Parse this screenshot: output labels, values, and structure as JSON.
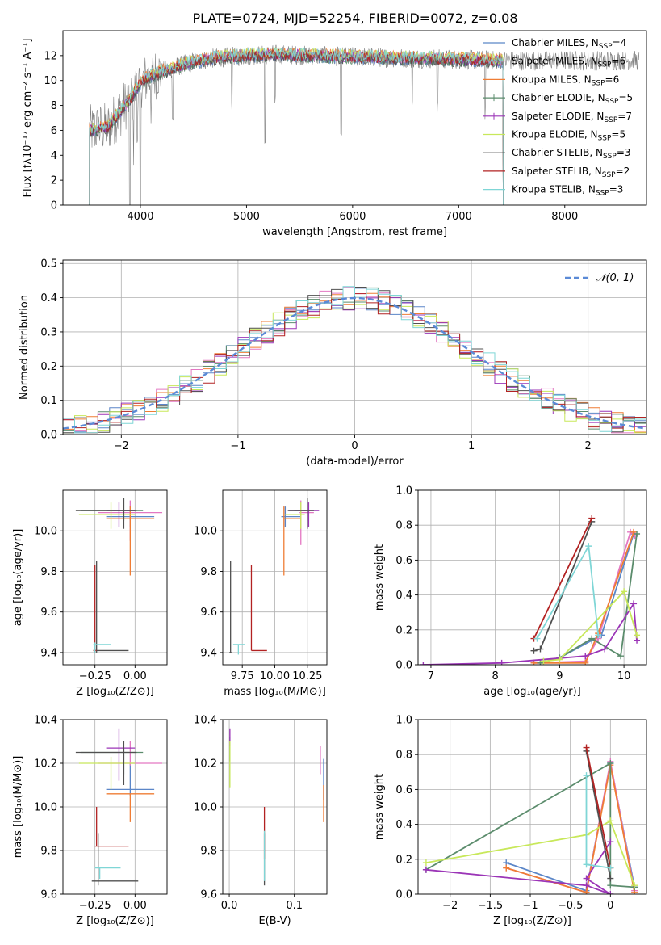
{
  "colors": {
    "chabrier_miles": "#5b86c8",
    "salpeter_miles": "#e377c2",
    "kroupa_miles": "#ef7d35",
    "chabrier_elodie": "#5b8c6c",
    "salpeter_elodie": "#9b35b7",
    "kroupa_elodie": "#c8e85a",
    "chabrier_stelib": "#505050",
    "salpeter_stelib": "#b22222",
    "kroupa_stelib": "#7fd6d6",
    "gaussian": "#5b8ad6"
  },
  "figure_title": "PLATE=0724, MJD=52254, FIBERID=0072, z=0.08",
  "legend_entries": [
    {
      "label": "Chabrier MILES, N",
      "sub": "SSP",
      "tail": "=4",
      "color": "chabrier_miles",
      "marker": false
    },
    {
      "label": "Salpeter MILES, N",
      "sub": "SSP",
      "tail": "=6",
      "color": "salpeter_miles",
      "marker": false
    },
    {
      "label": "Kroupa MILES, N",
      "sub": "SSP",
      "tail": "=6",
      "color": "kroupa_miles",
      "marker": false
    },
    {
      "label": "Chabrier ELODIE, N",
      "sub": "SSP",
      "tail": "=5",
      "color": "chabrier_elodie",
      "marker": true
    },
    {
      "label": "Salpeter ELODIE, N",
      "sub": "SSP",
      "tail": "=7",
      "color": "salpeter_elodie",
      "marker": true
    },
    {
      "label": "Kroupa ELODIE, N",
      "sub": "SSP",
      "tail": "=5",
      "color": "kroupa_elodie",
      "marker": false
    },
    {
      "label": "Chabrier STELIB, N",
      "sub": "SSP",
      "tail": "=3",
      "color": "chabrier_stelib",
      "marker": false
    },
    {
      "label": "Salpeter STELIB, N",
      "sub": "SSP",
      "tail": "=2",
      "color": "salpeter_stelib",
      "marker": false
    },
    {
      "label": "Kroupa STELIB, N",
      "sub": "SSP",
      "tail": "=3",
      "color": "kroupa_stelib",
      "marker": false
    }
  ],
  "chart_data": [
    {
      "id": "spectrum",
      "type": "line",
      "xlabel": "wavelength [Angstrom, rest frame]",
      "ylabel": "Flux [fλ10⁻¹⁷ erg cm⁻² s⁻¹ A⁻¹]",
      "xlim": [
        3270,
        8770
      ],
      "ylim": [
        0,
        14
      ],
      "xticks": [
        4000,
        5000,
        6000,
        7000,
        8000
      ],
      "yticks": [
        0,
        2,
        4,
        6,
        8,
        10,
        12
      ],
      "continuum": {
        "x": [
          3550,
          3700,
          3900,
          4000,
          4100,
          4300,
          4500,
          4700,
          5000,
          5300,
          5600,
          6000,
          6500,
          7000,
          7400
        ],
        "y": [
          6.0,
          6.3,
          8.5,
          9.8,
          10.4,
          11.0,
          11.5,
          11.8,
          12.0,
          12.1,
          12.0,
          11.9,
          11.8,
          11.7,
          11.6
        ]
      },
      "absorption_lines": [
        3934,
        3969,
        4102,
        4304,
        4861,
        5175,
        5270,
        5892,
        6563,
        6800,
        7250
      ]
    },
    {
      "id": "residuals",
      "type": "line",
      "xlabel": "(data-model)/error",
      "ylabel": "Normed distribution",
      "xlim": [
        -2.5,
        2.5
      ],
      "ylim": [
        0,
        0.51
      ],
      "xticks": [
        -2,
        -1,
        0,
        1,
        2
      ],
      "yticks": [
        0.0,
        0.1,
        0.2,
        0.3,
        0.4,
        0.5
      ],
      "legend_label": "𝒩(0, 1)",
      "gaussian": {
        "mu": 0,
        "sigma": 1
      }
    },
    {
      "id": "age_vs_Z",
      "type": "scatter",
      "xlabel": "Z [log₁₀(Z/Z⊙)]",
      "ylabel": "age  [log₁₀(age/yr)]",
      "xlim": [
        -0.45,
        0.2
      ],
      "ylim": [
        9.34,
        10.2
      ],
      "xticks": [
        -0.25,
        0.0
      ],
      "xticklabels": [
        "−0.25",
        "0.00"
      ],
      "yticks": [
        9.4,
        9.6,
        9.8,
        10.0
      ],
      "points": [
        {
          "series": "chabrier_miles",
          "x": -0.03,
          "y": 10.07,
          "xerr": [
            0.15,
            0.15
          ],
          "yerr": [
            0.05,
            0.05
          ]
        },
        {
          "series": "salpeter_miles",
          "x": -0.03,
          "y": 10.09,
          "xerr": [
            0.2,
            0.2
          ],
          "yerr": [
            0.14,
            0.06
          ]
        },
        {
          "series": "kroupa_miles",
          "x": -0.03,
          "y": 10.06,
          "xerr": [
            0.15,
            0.15
          ],
          "yerr": [
            0.28,
            0.06
          ]
        },
        {
          "series": "chabrier_elodie",
          "x": -0.07,
          "y": 10.1,
          "xerr": [
            0.27,
            0.12
          ],
          "yerr": [
            0.05,
            0.06
          ]
        },
        {
          "series": "salpeter_elodie",
          "x": -0.1,
          "y": 10.1,
          "xerr": [
            0.08,
            0.1
          ],
          "yerr": [
            0.08,
            0.04
          ]
        },
        {
          "series": "kroupa_elodie",
          "x": -0.15,
          "y": 10.08,
          "xerr": [
            0.2,
            0.15
          ],
          "yerr": [
            0.07,
            0.06
          ]
        },
        {
          "series": "chabrier_stelib",
          "x": -0.07,
          "y": 10.1,
          "xerr": [
            0.3,
            0.08
          ],
          "yerr": [
            0.09,
            0.06
          ]
        },
        {
          "series": "chabrier_stelib",
          "x": -0.24,
          "y": 9.41,
          "xerr": [
            0.02,
            0.2
          ],
          "yerr": [
            0.01,
            0.44
          ]
        },
        {
          "series": "salpeter_stelib",
          "x": -0.25,
          "y": 9.41,
          "xerr": [
            0.01,
            0.01
          ],
          "yerr": [
            0.01,
            0.42
          ]
        },
        {
          "series": "kroupa_stelib",
          "x": -0.25,
          "y": 9.44,
          "xerr": [
            0.01,
            0.1
          ],
          "yerr": [
            0.04,
            0.01
          ]
        }
      ]
    },
    {
      "id": "age_vs_mass",
      "type": "scatter",
      "xlabel": "mass [log₁₀(M/M⊙)]",
      "xlim": [
        9.6,
        10.4
      ],
      "ylim": [
        9.34,
        10.2
      ],
      "xticks": [
        9.75,
        10.0,
        10.25
      ],
      "xticklabels": [
        "9.75",
        "10.00",
        "10.25"
      ],
      "yticks": [
        9.4,
        9.6,
        9.8,
        10.0
      ],
      "points": [
        {
          "series": "chabrier_miles",
          "x": 10.08,
          "y": 10.07,
          "xerr": [
            0.03,
            0.12
          ],
          "yerr": [
            0.05,
            0.05
          ]
        },
        {
          "series": "salpeter_miles",
          "x": 10.2,
          "y": 10.09,
          "xerr": [
            0.01,
            0.1
          ],
          "yerr": [
            0.16,
            0.06
          ]
        },
        {
          "series": "kroupa_miles",
          "x": 10.07,
          "y": 10.06,
          "xerr": [
            0.0,
            0.13
          ],
          "yerr": [
            0.28,
            0.06
          ]
        },
        {
          "series": "chabrier_elodie",
          "x": 10.25,
          "y": 10.1,
          "xerr": [
            0.1,
            0.02
          ],
          "yerr": [
            0.05,
            0.05
          ]
        },
        {
          "series": "salpeter_elodie",
          "x": 10.26,
          "y": 10.1,
          "xerr": [
            0.15,
            0.08
          ],
          "yerr": [
            0.08,
            0.04
          ]
        },
        {
          "series": "kroupa_elodie",
          "x": 10.2,
          "y": 10.08,
          "xerr": [
            0.12,
            0.03
          ],
          "yerr": [
            0.07,
            0.06
          ]
        },
        {
          "series": "chabrier_stelib",
          "x": 10.25,
          "y": 10.1,
          "xerr": [
            0.15,
            0.05
          ],
          "yerr": [
            0.09,
            0.06
          ]
        },
        {
          "series": "chabrier_stelib",
          "x": 9.66,
          "y": 9.4,
          "xerr": [
            0.01,
            0.01
          ],
          "yerr": [
            0.0,
            0.45
          ]
        },
        {
          "series": "salpeter_stelib",
          "x": 9.82,
          "y": 9.41,
          "xerr": [
            0.0,
            0.12
          ],
          "yerr": [
            0.0,
            0.42
          ]
        },
        {
          "series": "kroupa_stelib",
          "x": 9.72,
          "y": 9.44,
          "xerr": [
            0.04,
            0.05
          ],
          "yerr": [
            0.05,
            0.0
          ]
        }
      ]
    },
    {
      "id": "weight_vs_age",
      "type": "line",
      "xlabel": "age  [log₁₀(age/yr)]",
      "ylabel": "mass weight",
      "xlim": [
        6.8,
        10.35
      ],
      "ylim": [
        0,
        1.0
      ],
      "xticks": [
        7,
        8,
        9,
        10
      ],
      "yticks": [
        0.0,
        0.2,
        0.4,
        0.6,
        0.8,
        1.0
      ],
      "series": [
        {
          "name": "chabrier_miles",
          "x": [
            8.7,
            9.0,
            9.5,
            9.65,
            10.15
          ],
          "y": [
            0.01,
            0.04,
            0.14,
            0.17,
            0.75
          ]
        },
        {
          "name": "salpeter_miles",
          "x": [
            8.6,
            9.4,
            9.6,
            10.1,
            10.17
          ],
          "y": [
            0.01,
            0.02,
            0.15,
            0.76,
            0.74
          ]
        },
        {
          "name": "kroupa_miles",
          "x": [
            8.6,
            9.4,
            9.6,
            10.15
          ],
          "y": [
            0.01,
            0.01,
            0.18,
            0.76
          ]
        },
        {
          "name": "chabrier_elodie",
          "x": [
            8.7,
            9.0,
            9.5,
            9.95,
            10.2
          ],
          "y": [
            0.01,
            0.04,
            0.15,
            0.05,
            0.75
          ]
        },
        {
          "name": "salpeter_elodie",
          "x": [
            6.88,
            8.1,
            9.4,
            9.7,
            10.15,
            10.2
          ],
          "y": [
            0.0,
            0.01,
            0.05,
            0.09,
            0.35,
            0.14
          ]
        },
        {
          "name": "kroupa_elodie",
          "x": [
            8.75,
            9.0,
            10.0,
            10.2
          ],
          "y": [
            0.02,
            0.03,
            0.42,
            0.17
          ]
        },
        {
          "name": "chabrier_stelib",
          "x": [
            8.6,
            8.7,
            9.5
          ],
          "y": [
            0.08,
            0.09,
            0.82
          ]
        },
        {
          "name": "salpeter_stelib",
          "x": [
            8.6,
            9.5
          ],
          "y": [
            0.15,
            0.84
          ]
        },
        {
          "name": "kroupa_stelib",
          "x": [
            8.65,
            9.45,
            9.6
          ],
          "y": [
            0.15,
            0.68,
            0.17
          ]
        }
      ]
    },
    {
      "id": "mass_vs_Z",
      "type": "scatter",
      "xlabel": "Z [log₁₀(Z/Z⊙)]",
      "ylabel": "mass [log₁₀(M/M⊙)]",
      "xlim": [
        -0.45,
        0.2
      ],
      "ylim": [
        9.6,
        10.4
      ],
      "xticks": [
        -0.25,
        0.0
      ],
      "xticklabels": [
        "−0.25",
        "0.00"
      ],
      "yticks": [
        9.6,
        9.8,
        10.0,
        10.2,
        10.4
      ],
      "points": [
        {
          "series": "chabrier_miles",
          "x": -0.03,
          "y": 10.08,
          "xerr": [
            0.15,
            0.15
          ],
          "yerr": [
            0.03,
            0.12
          ]
        },
        {
          "series": "salpeter_miles",
          "x": -0.03,
          "y": 10.2,
          "xerr": [
            0.2,
            0.2
          ],
          "yerr": [
            0.01,
            0.1
          ]
        },
        {
          "series": "kroupa_miles",
          "x": -0.03,
          "y": 10.06,
          "xerr": [
            0.15,
            0.15
          ],
          "yerr": [
            0.13,
            0.0
          ]
        },
        {
          "series": "chabrier_elodie",
          "x": -0.07,
          "y": 10.25,
          "xerr": [
            0.27,
            0.12
          ],
          "yerr": [
            0.1,
            0.02
          ]
        },
        {
          "series": "salpeter_elodie",
          "x": -0.1,
          "y": 10.27,
          "xerr": [
            0.08,
            0.1
          ],
          "yerr": [
            0.15,
            0.09
          ]
        },
        {
          "series": "kroupa_elodie",
          "x": -0.15,
          "y": 10.2,
          "xerr": [
            0.2,
            0.15
          ],
          "yerr": [
            0.12,
            0.03
          ]
        },
        {
          "series": "chabrier_stelib",
          "x": -0.07,
          "y": 10.25,
          "xerr": [
            0.3,
            0.08
          ],
          "yerr": [
            0.15,
            0.05
          ]
        },
        {
          "series": "chabrier_stelib",
          "x": -0.23,
          "y": 9.66,
          "xerr": [
            0.04,
            0.25
          ],
          "yerr": [
            0.02,
            0.22
          ]
        },
        {
          "series": "salpeter_stelib",
          "x": -0.24,
          "y": 9.82,
          "xerr": [
            0.01,
            0.2
          ],
          "yerr": [
            0.0,
            0.18
          ]
        },
        {
          "series": "kroupa_stelib",
          "x": -0.22,
          "y": 9.72,
          "xerr": [
            0.03,
            0.13
          ],
          "yerr": [
            0.05,
            0.0
          ]
        }
      ]
    },
    {
      "id": "mass_vs_EBV",
      "type": "scatter",
      "xlabel": "E(B-V)",
      "xlim": [
        -0.01,
        0.15
      ],
      "ylim": [
        9.6,
        10.4
      ],
      "xticks": [
        0.0,
        0.1
      ],
      "xticklabels": [
        "0.0",
        "0.1"
      ],
      "yticks": [
        9.6,
        9.8,
        10.0,
        10.2,
        10.4
      ],
      "points": [
        {
          "series": "chabrier_miles",
          "x": 0.145,
          "y": 10.08,
          "yerr": [
            0.05,
            0.14
          ]
        },
        {
          "series": "salpeter_miles",
          "x": 0.14,
          "y": 10.2,
          "yerr": [
            0.05,
            0.08
          ]
        },
        {
          "series": "kroupa_miles",
          "x": 0.145,
          "y": 10.06,
          "yerr": [
            0.13,
            0.04
          ]
        },
        {
          "series": "chabrier_elodie",
          "x": 0.001,
          "y": 10.25,
          "yerr": [
            0.04,
            0.07
          ]
        },
        {
          "series": "salpeter_elodie",
          "x": 0.001,
          "y": 10.33,
          "yerr": [
            0.05,
            0.03
          ]
        },
        {
          "series": "kroupa_elodie",
          "x": 0.001,
          "y": 10.2,
          "yerr": [
            0.11,
            0.1
          ]
        },
        {
          "series": "chabrier_stelib",
          "x": 0.054,
          "y": 9.8,
          "yerr": [
            0.16,
            0.08
          ]
        },
        {
          "series": "salpeter_stelib",
          "x": 0.054,
          "y": 9.82,
          "yerr": [
            0.06,
            0.18
          ]
        },
        {
          "series": "kroupa_stelib",
          "x": 0.054,
          "y": 9.72,
          "yerr": [
            0.06,
            0.17
          ]
        }
      ]
    },
    {
      "id": "weight_vs_Z",
      "type": "line",
      "xlabel": "Z [log₁₀(Z/Z⊙)]",
      "ylabel": "mass weight",
      "xlim": [
        -2.4,
        0.45
      ],
      "ylim": [
        0,
        1.0
      ],
      "xticks": [
        -2.0,
        -1.5,
        -1.0,
        -0.5,
        0.0
      ],
      "yticks": [
        0.0,
        0.2,
        0.4,
        0.6,
        0.8,
        1.0
      ],
      "series": [
        {
          "name": "chabrier_miles",
          "x": [
            -1.3,
            -0.3,
            0.0,
            0.3
          ],
          "y": [
            0.18,
            0.02,
            0.75,
            0.04
          ]
        },
        {
          "name": "salpeter_miles",
          "x": [
            -1.3,
            -0.3,
            0.0,
            0.3
          ],
          "y": [
            0.15,
            0.01,
            0.76,
            0.02
          ]
        },
        {
          "name": "kroupa_miles",
          "x": [
            -1.3,
            -0.3,
            0.0,
            0.3
          ],
          "y": [
            0.15,
            0.01,
            0.74,
            0.01
          ]
        },
        {
          "name": "chabrier_elodie",
          "x": [
            -2.3,
            0.0,
            0.0,
            0.3
          ],
          "y": [
            0.14,
            0.75,
            0.05,
            0.04
          ]
        },
        {
          "name": "salpeter_elodie",
          "x": [
            -2.3,
            -0.3,
            0.0,
            -0.3,
            0.0
          ],
          "y": [
            0.14,
            0.05,
            0.0,
            0.09,
            0.3
          ]
        },
        {
          "name": "kroupa_elodie",
          "x": [
            -2.3,
            -0.3,
            0.0,
            0.3
          ],
          "y": [
            0.18,
            0.34,
            0.42,
            0.05
          ]
        },
        {
          "name": "chabrier_stelib",
          "x": [
            -0.3,
            0.0
          ],
          "y": [
            0.82,
            0.09
          ]
        },
        {
          "name": "salpeter_stelib",
          "x": [
            -0.3,
            0.0
          ],
          "y": [
            0.84,
            0.15
          ]
        },
        {
          "name": "kroupa_stelib",
          "x": [
            -0.3,
            -0.3,
            0.0
          ],
          "y": [
            0.68,
            0.17,
            0.15
          ]
        }
      ]
    }
  ]
}
